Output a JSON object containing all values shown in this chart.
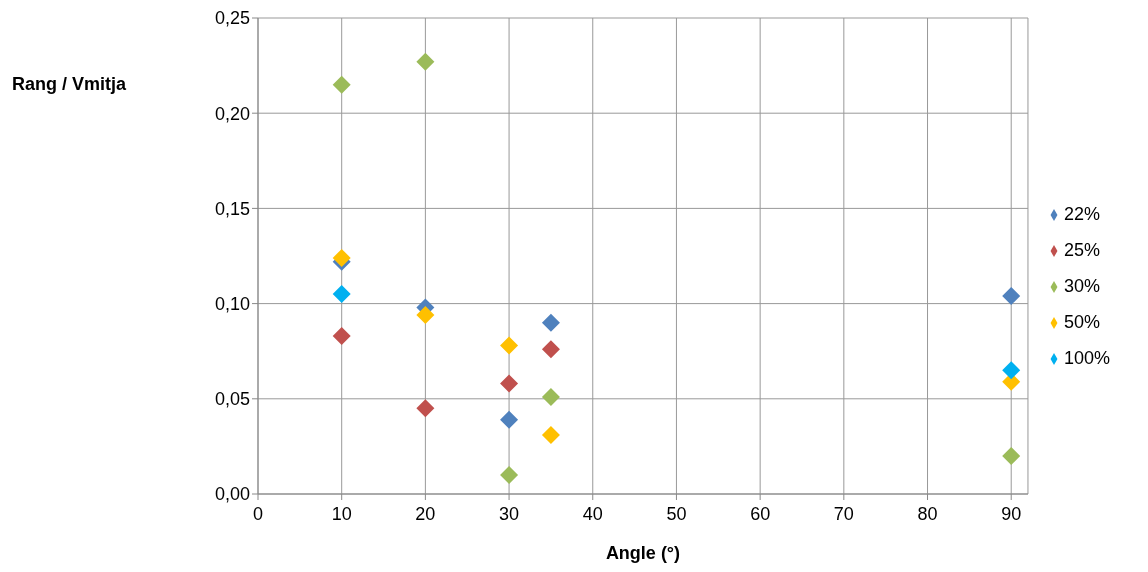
{
  "chart_data": {
    "type": "scatter",
    "xlabel": "Angle (°)",
    "ylabel": "Rang / Vmitja",
    "marker": "diamond",
    "grid": true,
    "legend": "right",
    "xlim": [
      0,
      92
    ],
    "xticks": [
      0,
      10,
      20,
      30,
      40,
      50,
      60,
      70,
      80,
      90
    ],
    "ylim": [
      0,
      0.25
    ],
    "yticks": [
      {
        "value": 0,
        "label": "0,00"
      },
      {
        "value": 0.05,
        "label": "0,05"
      },
      {
        "value": 0.1,
        "label": "0,10"
      },
      {
        "value": 0.15,
        "label": "0,15"
      },
      {
        "value": 0.2,
        "label": "0,20"
      },
      {
        "value": 0.25,
        "label": "0,25"
      }
    ],
    "series": [
      {
        "name": "22%",
        "color": "#4f81bd",
        "x": [
          10,
          20,
          30,
          35,
          90
        ],
        "values": [
          0.122,
          0.098,
          0.039,
          0.09,
          0.104
        ]
      },
      {
        "name": "25%",
        "color": "#c0504d",
        "x": [
          10,
          20,
          30,
          35
        ],
        "values": [
          0.083,
          0.045,
          0.058,
          0.076
        ]
      },
      {
        "name": "30%",
        "color": "#9bbb59",
        "x": [
          10,
          20,
          30,
          35,
          90
        ],
        "values": [
          0.215,
          0.227,
          0.01,
          0.051,
          0.02
        ]
      },
      {
        "name": "50%",
        "color": "#ffc000",
        "x": [
          10,
          20,
          30,
          35,
          90
        ],
        "values": [
          0.124,
          0.094,
          0.078,
          0.031,
          0.059
        ]
      },
      {
        "name": "100%",
        "color": "#00b0f0",
        "x": [
          10,
          90
        ],
        "values": [
          0.105,
          0.065
        ]
      }
    ]
  }
}
